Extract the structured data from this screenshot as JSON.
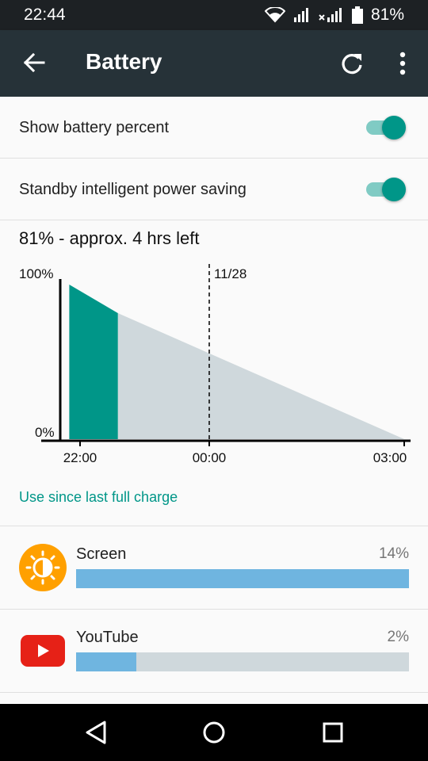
{
  "status_bar": {
    "time": "22:44",
    "battery_percent": "81%"
  },
  "app_bar": {
    "title": "Battery"
  },
  "settings": {
    "show_percent": {
      "label": "Show battery percent",
      "enabled": true
    },
    "standby_saving": {
      "label": "Standby intelligent power saving",
      "enabled": true
    }
  },
  "summary": "81% - approx. 4 hrs left",
  "chart_data": {
    "type": "area",
    "y_tick_labels": [
      "100%",
      "0%"
    ],
    "x_tick_labels": [
      "22:00",
      "00:00",
      "03:00"
    ],
    "marker_label": "11/28",
    "series": [
      {
        "name": "",
        "x": [
          "21:50",
          "22:35"
        ],
        "y": [
          92,
          75
        ],
        "color": "#009688"
      },
      {
        "name": "",
        "x": [
          "22:35",
          "03:00"
        ],
        "y": [
          75,
          0
        ],
        "color": "#cfd8dc"
      }
    ],
    "ylim": [
      0,
      100
    ]
  },
  "usage_section": {
    "heading": "Use since last full charge",
    "apps": [
      {
        "name": "Screen",
        "percent": "14%",
        "fraction": 1.0,
        "icon": "brightness-icon",
        "color": "#ffa000"
      },
      {
        "name": "YouTube",
        "percent": "2%",
        "fraction": 0.18,
        "icon": "youtube-icon",
        "color": "#e62117"
      }
    ]
  },
  "colors": {
    "accent": "#009688",
    "app_bar": "#263238",
    "usage_bar": "#6fb5e0"
  }
}
